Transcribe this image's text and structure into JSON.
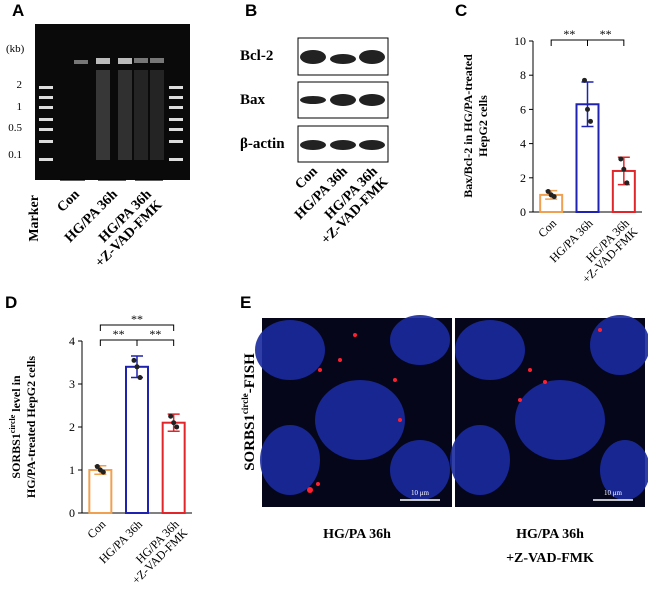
{
  "panels": {
    "A": {
      "label": "A",
      "unit": "(kb)",
      "sizes": [
        "2",
        "1",
        "0.5",
        "0.1"
      ],
      "lanes": [
        "Marker",
        "Con",
        "HG/PA 36h",
        [
          "HG/PA 36h",
          "+Z-VAD-FMK"
        ]
      ]
    },
    "B": {
      "label": "B",
      "proteins": [
        "Bcl-2",
        "Bax",
        "β-actin"
      ],
      "lanes": [
        "Con",
        "HG/PA 36h",
        [
          "HG/PA 36h",
          "+Z-VAD-FMK"
        ]
      ]
    },
    "E": {
      "label": "E",
      "side_label": [
        "SORBS1",
        "circle",
        "-FISH"
      ],
      "scale": "10 μm",
      "captions": [
        [
          "HG/PA 36h"
        ],
        [
          "HG/PA 36h",
          "+Z-VAD-FMK"
        ]
      ]
    }
  },
  "chart_data": [
    {
      "type": "bar",
      "label": "C",
      "ylabel": [
        "Bax/Bcl-2 in HG/PA-treated",
        "HepG2 cells"
      ],
      "categories": [
        "Con",
        "HG/PA 36h",
        [
          "HG/PA 36h",
          "+Z-VAD-FMK"
        ]
      ],
      "values": [
        1.0,
        6.3,
        2.4
      ],
      "errors": [
        0.25,
        1.3,
        0.8
      ],
      "points": [
        [
          1.2,
          1.0,
          0.9
        ],
        [
          7.7,
          6.0,
          5.3
        ],
        [
          3.1,
          2.5,
          1.7
        ]
      ],
      "colors": [
        "#f0a050",
        "#1f22b0",
        "#e0262a"
      ],
      "ylim": [
        0,
        10
      ],
      "yticks": [
        0,
        2,
        4,
        6,
        8,
        10
      ],
      "significance": [
        {
          "label": "**",
          "pair": [
            0,
            1
          ]
        },
        {
          "label": "**",
          "pair": [
            1,
            2
          ]
        }
      ]
    },
    {
      "type": "bar",
      "label": "D",
      "ylabel": [
        "SORBS1",
        "circle",
        " level in",
        "HG/PA-treated HepG2 cells"
      ],
      "categories": [
        "Con",
        "HG/PA 36h",
        [
          "HG/PA 36h",
          "+Z-VAD-FMK"
        ]
      ],
      "values": [
        1.0,
        3.4,
        2.1
      ],
      "errors": [
        0.1,
        0.25,
        0.2
      ],
      "points": [
        [
          1.08,
          1.0,
          0.95
        ],
        [
          3.55,
          3.4,
          3.15
        ],
        [
          2.25,
          2.1,
          2.0
        ]
      ],
      "colors": [
        "#f0a050",
        "#1f22b0",
        "#e0262a"
      ],
      "ylim": [
        0,
        4
      ],
      "yticks": [
        0,
        1,
        2,
        3,
        4
      ],
      "significance": [
        {
          "label": "**",
          "pair": [
            0,
            1
          ]
        },
        {
          "label": "**",
          "pair": [
            1,
            2
          ]
        },
        {
          "label": "**",
          "pair": [
            0,
            2
          ]
        }
      ]
    }
  ]
}
